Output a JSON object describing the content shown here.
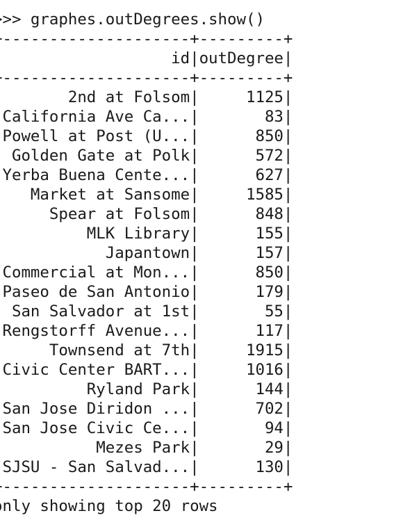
{
  "prompt": ">>> ",
  "command": "graphes.outDegrees.show()",
  "table": {
    "separator": "+--------------------+---------+",
    "headers": {
      "id": "id",
      "outDegree": "outDegree"
    },
    "rows": [
      {
        "id": "2nd at Folsom",
        "outDegree": "1125"
      },
      {
        "id": "California Ave Ca...",
        "outDegree": "83"
      },
      {
        "id": "Powell at Post (U...",
        "outDegree": "850"
      },
      {
        "id": "Golden Gate at Polk",
        "outDegree": "572"
      },
      {
        "id": "Yerba Buena Cente...",
        "outDegree": "627"
      },
      {
        "id": "Market at Sansome",
        "outDegree": "1585"
      },
      {
        "id": "Spear at Folsom",
        "outDegree": "848"
      },
      {
        "id": "MLK Library",
        "outDegree": "155"
      },
      {
        "id": "Japantown",
        "outDegree": "157"
      },
      {
        "id": "Commercial at Mon...",
        "outDegree": "850"
      },
      {
        "id": "Paseo de San Antonio",
        "outDegree": "179"
      },
      {
        "id": "San Salvador at 1st",
        "outDegree": "55"
      },
      {
        "id": "Rengstorff Avenue...",
        "outDegree": "117"
      },
      {
        "id": "Townsend at 7th",
        "outDegree": "1915"
      },
      {
        "id": "Civic Center BART...",
        "outDegree": "1016"
      },
      {
        "id": "Ryland Park",
        "outDegree": "144"
      },
      {
        "id": "San Jose Diridon ...",
        "outDegree": "702"
      },
      {
        "id": "San Jose Civic Ce...",
        "outDegree": "94"
      },
      {
        "id": "Mezes Park",
        "outDegree": "29"
      },
      {
        "id": "SJSU - San Salvad...",
        "outDegree": "130"
      }
    ]
  },
  "footer": "only showing top 20 rows"
}
